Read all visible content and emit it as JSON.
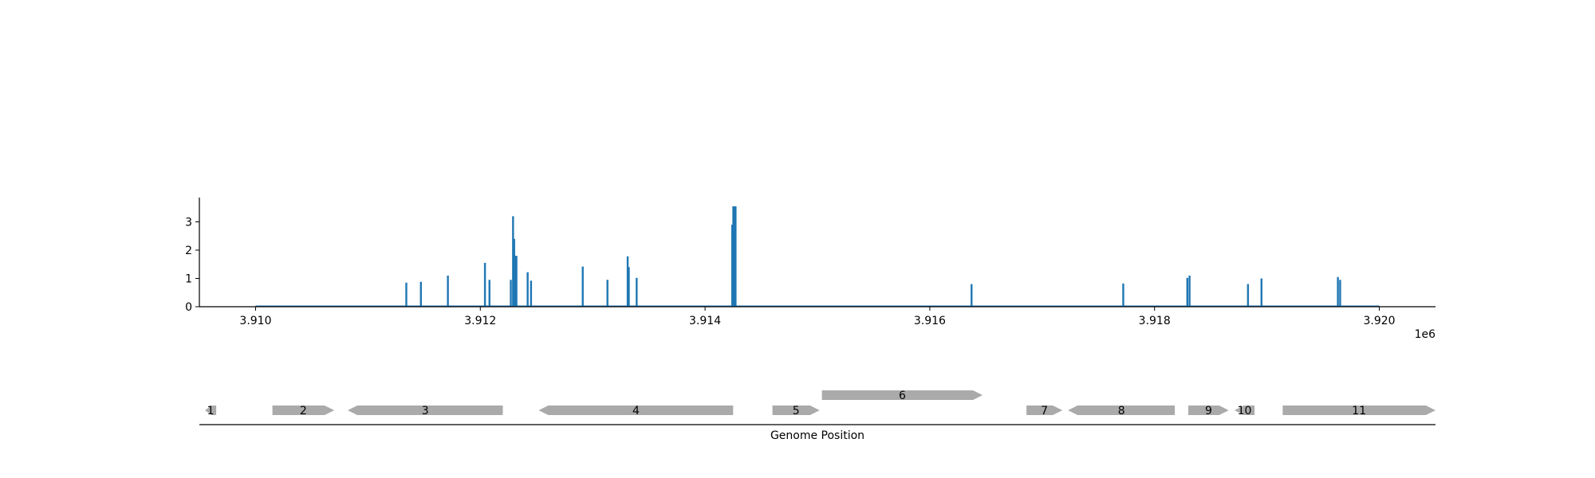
{
  "chart_data": {
    "type": "bar",
    "title": "",
    "ylabel": "",
    "xlabel": "",
    "x_offset_label": "1e6",
    "xlim": [
      3909500,
      3920500
    ],
    "ylim": [
      0,
      3.9
    ],
    "x_ticks": [
      3910000,
      3912000,
      3914000,
      3916000,
      3918000,
      3920000
    ],
    "x_tick_labels": [
      "3.910",
      "3.912",
      "3.914",
      "3.916",
      "3.918",
      "3.920"
    ],
    "y_ticks": [
      0,
      1,
      2,
      3
    ],
    "y_tick_labels": [
      "0",
      "1",
      "2",
      "3"
    ],
    "baseline_range": [
      3910000,
      3920000
    ],
    "color": "#1f77b4",
    "x": [
      3911340,
      3911470,
      3911710,
      3912040,
      3912080,
      3912270,
      3912290,
      3912300,
      3912310,
      3912320,
      3912420,
      3912450,
      3912910,
      3913130,
      3913310,
      3913320,
      3913390,
      3914240,
      3914250,
      3914260,
      3914270,
      3916370,
      3917720,
      3918290,
      3918310,
      3918830,
      3918950,
      3919630,
      3919650
    ],
    "values": [
      0.85,
      0.88,
      1.1,
      1.55,
      0.95,
      0.95,
      3.2,
      2.4,
      1.8,
      1.8,
      1.22,
      0.92,
      1.42,
      0.95,
      1.78,
      1.4,
      1.02,
      2.9,
      3.55,
      3.55,
      3.55,
      0.8,
      0.82,
      1.02,
      1.1,
      0.8,
      1.0,
      1.05,
      0.95
    ]
  },
  "gene_track": {
    "xlabel": "Genome Position",
    "color": "#aaaaaa",
    "genes": [
      {
        "label": "1",
        "start": 3909550,
        "end": 3909650,
        "strand": -1,
        "row": 0
      },
      {
        "label": "2",
        "start": 3910150,
        "end": 3910700,
        "strand": 1,
        "row": 0
      },
      {
        "label": "3",
        "start": 3910820,
        "end": 3912200,
        "strand": -1,
        "row": 0
      },
      {
        "label": "4",
        "start": 3912520,
        "end": 3914250,
        "strand": -1,
        "row": 0
      },
      {
        "label": "5",
        "start": 3914600,
        "end": 3915020,
        "strand": 1,
        "row": 0
      },
      {
        "label": "6",
        "start": 3915040,
        "end": 3916470,
        "strand": 1,
        "row": 1
      },
      {
        "label": "7",
        "start": 3916860,
        "end": 3917180,
        "strand": 1,
        "row": 0
      },
      {
        "label": "8",
        "start": 3917230,
        "end": 3918180,
        "strand": -1,
        "row": 0
      },
      {
        "label": "9",
        "start": 3918300,
        "end": 3918660,
        "strand": 1,
        "row": 0
      },
      {
        "label": "10",
        "start": 3918710,
        "end": 3918890,
        "strand": -1,
        "row": 0
      },
      {
        "label": "11",
        "start": 3919140,
        "end": 3920500,
        "strand": 1,
        "row": 0
      }
    ]
  }
}
